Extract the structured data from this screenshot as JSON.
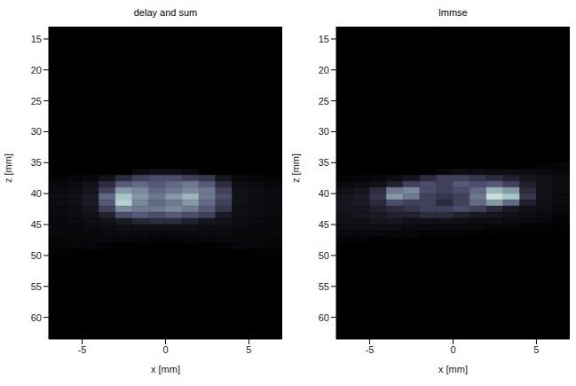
{
  "chart_data": [
    {
      "type": "heatmap",
      "title": "delay and sum",
      "x_label": "x [mm]",
      "y_label": "z [mm]",
      "xlim": [
        -7,
        7
      ],
      "ylim": [
        13,
        63.5
      ],
      "xticks": [
        -5,
        0,
        5
      ],
      "yticks": [
        15,
        20,
        25,
        30,
        35,
        40,
        45,
        50,
        55,
        60
      ],
      "color": "bone",
      "cells": {
        "x": [
          -6.5,
          -5.5,
          -4.5,
          -3.5,
          -2.5,
          -1.5,
          -0.5,
          0.5,
          1.5,
          2.5,
          3.5,
          4.5,
          5.5,
          6.5
        ],
        "z": [
          35.5,
          36.5,
          37.5,
          38.5,
          39.5,
          40.5,
          41.5,
          42.5,
          43.5,
          44.5,
          45.5,
          46.5,
          47.5,
          48.5,
          49.5,
          50.5
        ],
        "values": [
          [
            0,
            0,
            0,
            0,
            0,
            0,
            0,
            0,
            0,
            0,
            0,
            0,
            0,
            0
          ],
          [
            0,
            0,
            0,
            0,
            0,
            0.05,
            0.08,
            0.08,
            0.05,
            0,
            0,
            0,
            0,
            0
          ],
          [
            0.02,
            0.03,
            0.04,
            0.08,
            0.2,
            0.3,
            0.35,
            0.35,
            0.3,
            0.25,
            0.1,
            0.04,
            0.03,
            0.02
          ],
          [
            0.04,
            0.05,
            0.08,
            0.2,
            0.4,
            0.45,
            0.4,
            0.45,
            0.5,
            0.4,
            0.2,
            0.06,
            0.05,
            0.04
          ],
          [
            0.05,
            0.06,
            0.1,
            0.3,
            0.6,
            0.55,
            0.45,
            0.5,
            0.55,
            0.5,
            0.3,
            0.08,
            0.06,
            0.05
          ],
          [
            0.06,
            0.07,
            0.12,
            0.45,
            0.75,
            0.6,
            0.5,
            0.6,
            0.7,
            0.5,
            0.35,
            0.08,
            0.06,
            0.05
          ],
          [
            0.06,
            0.07,
            0.12,
            0.4,
            0.8,
            0.55,
            0.45,
            0.5,
            0.6,
            0.45,
            0.3,
            0.08,
            0.06,
            0.05
          ],
          [
            0.05,
            0.06,
            0.1,
            0.3,
            0.55,
            0.5,
            0.5,
            0.55,
            0.5,
            0.4,
            0.25,
            0.07,
            0.06,
            0.05
          ],
          [
            0.05,
            0.06,
            0.08,
            0.15,
            0.35,
            0.4,
            0.35,
            0.4,
            0.35,
            0.3,
            0.12,
            0.07,
            0.06,
            0.05
          ],
          [
            0.04,
            0.05,
            0.06,
            0.08,
            0.12,
            0.18,
            0.2,
            0.2,
            0.15,
            0.1,
            0.08,
            0.06,
            0.05,
            0.04
          ],
          [
            0.04,
            0.04,
            0.05,
            0.06,
            0.07,
            0.07,
            0.07,
            0.07,
            0.07,
            0.06,
            0.06,
            0.05,
            0.04,
            0.04
          ],
          [
            0.04,
            0.04,
            0.04,
            0.05,
            0.05,
            0.05,
            0.04,
            0.04,
            0.05,
            0.05,
            0.05,
            0.04,
            0.04,
            0.04
          ],
          [
            0.03,
            0.04,
            0.04,
            0.04,
            0.04,
            0.03,
            0.02,
            0.02,
            0.03,
            0.04,
            0.04,
            0.04,
            0.04,
            0.03
          ],
          [
            0.03,
            0.03,
            0.03,
            0.02,
            0.01,
            0,
            0,
            0,
            0,
            0.01,
            0.02,
            0.03,
            0.03,
            0.03
          ],
          [
            0.02,
            0.01,
            0,
            0,
            0,
            0,
            0,
            0,
            0,
            0,
            0,
            0,
            0.01,
            0.02
          ],
          [
            0,
            0,
            0,
            0,
            0,
            0,
            0,
            0,
            0,
            0,
            0,
            0,
            0,
            0
          ]
        ]
      }
    },
    {
      "type": "heatmap",
      "title": "lmmse",
      "x_label": "x [mm]",
      "y_label": "z [mm]",
      "xlim": [
        -7,
        7
      ],
      "ylim": [
        13,
        63.5
      ],
      "xticks": [
        -5,
        0,
        5
      ],
      "yticks": [
        15,
        20,
        25,
        30,
        35,
        40,
        45,
        50,
        55,
        60
      ],
      "color": "bone",
      "cells": {
        "x": [
          -6.5,
          -5.5,
          -4.5,
          -3.5,
          -2.5,
          -1.5,
          -0.5,
          0.5,
          1.5,
          2.5,
          3.5,
          4.5,
          5.5,
          6.5
        ],
        "z": [
          35.5,
          36.5,
          37.5,
          38.5,
          39.5,
          40.5,
          41.5,
          42.5,
          43.5,
          44.5,
          45.5,
          46.5,
          47.5,
          48.5,
          49.5,
          50.5
        ],
        "values": [
          [
            0,
            0,
            0,
            0,
            0,
            0,
            0,
            0,
            0,
            0,
            0,
            0,
            0.02,
            0.03
          ],
          [
            0,
            0,
            0,
            0,
            0,
            0.02,
            0.04,
            0.06,
            0.06,
            0.06,
            0.06,
            0.06,
            0.05,
            0.04
          ],
          [
            0.02,
            0.03,
            0.04,
            0.06,
            0.1,
            0.2,
            0.3,
            0.3,
            0.25,
            0.2,
            0.15,
            0.1,
            0.08,
            0.06
          ],
          [
            0.05,
            0.06,
            0.08,
            0.15,
            0.3,
            0.35,
            0.3,
            0.4,
            0.35,
            0.4,
            0.3,
            0.15,
            0.08,
            0.06
          ],
          [
            0.08,
            0.1,
            0.2,
            0.5,
            0.55,
            0.35,
            0.3,
            0.35,
            0.45,
            0.7,
            0.6,
            0.2,
            0.08,
            0.06
          ],
          [
            0.1,
            0.12,
            0.25,
            0.6,
            0.5,
            0.3,
            0.25,
            0.3,
            0.5,
            0.85,
            0.75,
            0.25,
            0.08,
            0.05
          ],
          [
            0.1,
            0.12,
            0.2,
            0.35,
            0.3,
            0.3,
            0.2,
            0.3,
            0.45,
            0.6,
            0.45,
            0.15,
            0.07,
            0.05
          ],
          [
            0.1,
            0.1,
            0.15,
            0.2,
            0.25,
            0.3,
            0.3,
            0.35,
            0.3,
            0.2,
            0.12,
            0.08,
            0.06,
            0.04
          ],
          [
            0.08,
            0.1,
            0.12,
            0.15,
            0.15,
            0.2,
            0.2,
            0.15,
            0.12,
            0.1,
            0.08,
            0.06,
            0.05,
            0.03
          ],
          [
            0.08,
            0.08,
            0.1,
            0.1,
            0.08,
            0.08,
            0.08,
            0.07,
            0.06,
            0.06,
            0.05,
            0.04,
            0.03,
            0.02
          ],
          [
            0.06,
            0.07,
            0.07,
            0.06,
            0.05,
            0.05,
            0.04,
            0.04,
            0.04,
            0.03,
            0.03,
            0.02,
            0.02,
            0.01
          ],
          [
            0.05,
            0.04,
            0.04,
            0.03,
            0.03,
            0.02,
            0.02,
            0.02,
            0.01,
            0.01,
            0,
            0,
            0,
            0
          ],
          [
            0.02,
            0.02,
            0.01,
            0,
            0,
            0,
            0,
            0,
            0,
            0,
            0,
            0,
            0,
            0
          ],
          [
            0,
            0,
            0,
            0,
            0,
            0,
            0,
            0,
            0,
            0,
            0,
            0,
            0,
            0
          ],
          [
            0,
            0,
            0,
            0,
            0,
            0,
            0,
            0,
            0,
            0,
            0,
            0,
            0,
            0
          ],
          [
            0,
            0,
            0,
            0,
            0,
            0,
            0,
            0,
            0,
            0,
            0,
            0,
            0,
            0
          ]
        ]
      }
    }
  ]
}
